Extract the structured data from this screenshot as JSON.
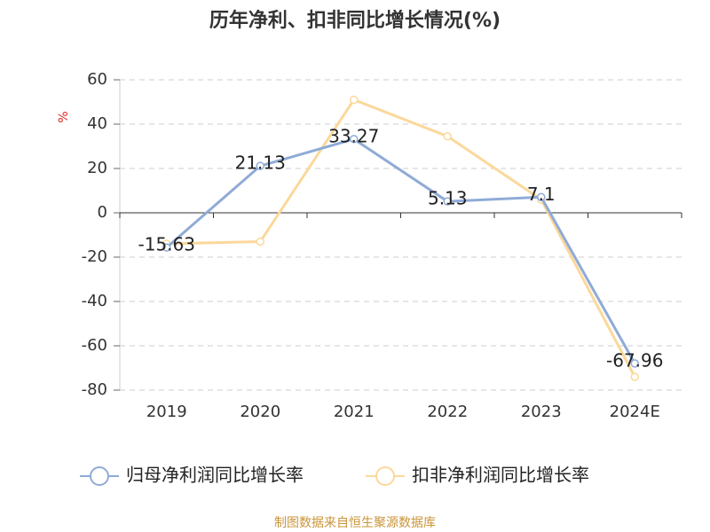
{
  "chart_data": {
    "type": "line",
    "title": "历年净利、扣非同比增长情况(%)",
    "y_label": "%",
    "categories": [
      "2019",
      "2020",
      "2021",
      "2022",
      "2023",
      "2024E"
    ],
    "series": [
      {
        "name": "归母净利润同比增长率",
        "color": "#8fabd6",
        "values": [
          -15.63,
          21.13,
          33.27,
          5.13,
          7.1,
          -67.96
        ],
        "data_labels": true
      },
      {
        "name": "扣非净利润同比增长率",
        "color": "#fbd89b",
        "values": [
          -14,
          -13,
          51,
          34.5,
          6,
          -74
        ],
        "data_labels": false
      }
    ],
    "ylim": [
      -80,
      60
    ],
    "yticks": [
      -80,
      -60,
      -40,
      -20,
      0,
      20,
      40,
      60
    ],
    "grid": true,
    "source": "制图数据来自恒生聚源数据库"
  }
}
